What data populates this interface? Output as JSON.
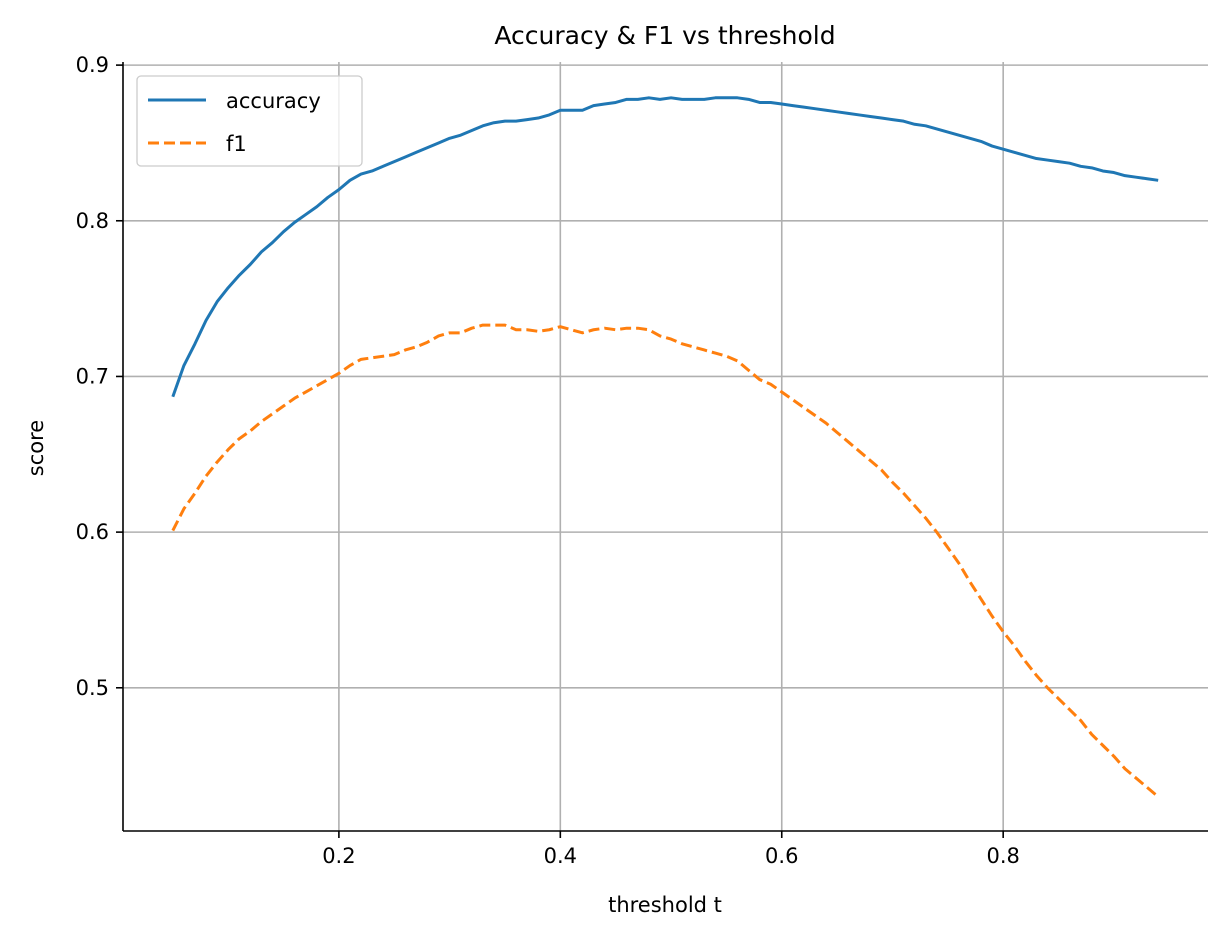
{
  "chart_data": {
    "type": "line",
    "title": "Accuracy & F1 vs threshold",
    "xlabel": "threshold t",
    "ylabel": "score",
    "xlim": [
      0.005,
      0.985
    ],
    "ylim": [
      0.408,
      0.902
    ],
    "xticks": [
      0.2,
      0.4,
      0.6,
      0.8
    ],
    "xtick_labels": [
      "0.2",
      "0.4",
      "0.6",
      "0.8"
    ],
    "yticks": [
      0.5,
      0.6,
      0.7,
      0.8,
      0.9
    ],
    "ytick_labels": [
      "0.5",
      "0.6",
      "0.7",
      "0.8",
      "0.9"
    ],
    "grid": true,
    "legend_position": "top-left",
    "x": [
      0.05,
      0.06,
      0.07,
      0.08,
      0.09,
      0.1,
      0.11,
      0.12,
      0.13,
      0.14,
      0.15,
      0.16,
      0.17,
      0.18,
      0.19,
      0.2,
      0.21,
      0.22,
      0.23,
      0.24,
      0.25,
      0.26,
      0.27,
      0.28,
      0.29,
      0.3,
      0.31,
      0.32,
      0.33,
      0.34,
      0.35,
      0.36,
      0.37,
      0.38,
      0.39,
      0.4,
      0.41,
      0.42,
      0.43,
      0.44,
      0.45,
      0.46,
      0.47,
      0.48,
      0.49,
      0.5,
      0.51,
      0.52,
      0.53,
      0.54,
      0.55,
      0.56,
      0.57,
      0.58,
      0.59,
      0.6,
      0.61,
      0.62,
      0.63,
      0.64,
      0.65,
      0.66,
      0.67,
      0.68,
      0.69,
      0.7,
      0.71,
      0.72,
      0.73,
      0.74,
      0.75,
      0.76,
      0.77,
      0.78,
      0.79,
      0.8,
      0.81,
      0.82,
      0.83,
      0.84,
      0.85,
      0.86,
      0.87,
      0.88,
      0.89,
      0.9,
      0.91,
      0.92,
      0.93,
      0.94
    ],
    "series": [
      {
        "name": "accuracy",
        "color": "#1f77b4",
        "dash": "solid",
        "values": [
          0.687,
          0.707,
          0.721,
          0.736,
          0.748,
          0.757,
          0.765,
          0.772,
          0.78,
          0.786,
          0.793,
          0.799,
          0.804,
          0.809,
          0.815,
          0.82,
          0.826,
          0.83,
          0.832,
          0.835,
          0.838,
          0.841,
          0.844,
          0.847,
          0.85,
          0.853,
          0.855,
          0.858,
          0.861,
          0.863,
          0.864,
          0.864,
          0.865,
          0.866,
          0.868,
          0.871,
          0.871,
          0.871,
          0.874,
          0.875,
          0.876,
          0.878,
          0.878,
          0.879,
          0.878,
          0.879,
          0.878,
          0.878,
          0.878,
          0.879,
          0.879,
          0.879,
          0.878,
          0.876,
          0.876,
          0.875,
          0.874,
          0.873,
          0.872,
          0.871,
          0.87,
          0.869,
          0.868,
          0.867,
          0.866,
          0.865,
          0.864,
          0.862,
          0.861,
          0.859,
          0.857,
          0.855,
          0.853,
          0.851,
          0.848,
          0.846,
          0.844,
          0.842,
          0.84,
          0.839,
          0.838,
          0.837,
          0.835,
          0.834,
          0.832,
          0.831,
          0.829,
          0.828,
          0.827,
          0.826
        ]
      },
      {
        "name": "f1",
        "color": "#ff7f0e",
        "dash": "dashed",
        "values": [
          0.601,
          0.615,
          0.625,
          0.636,
          0.645,
          0.653,
          0.66,
          0.665,
          0.671,
          0.676,
          0.681,
          0.686,
          0.69,
          0.694,
          0.698,
          0.702,
          0.707,
          0.711,
          0.712,
          0.713,
          0.714,
          0.717,
          0.719,
          0.722,
          0.726,
          0.728,
          0.728,
          0.731,
          0.733,
          0.733,
          0.733,
          0.73,
          0.73,
          0.729,
          0.73,
          0.732,
          0.73,
          0.728,
          0.73,
          0.731,
          0.73,
          0.731,
          0.731,
          0.73,
          0.726,
          0.724,
          0.721,
          0.719,
          0.717,
          0.715,
          0.713,
          0.71,
          0.704,
          0.698,
          0.695,
          0.69,
          0.685,
          0.68,
          0.675,
          0.67,
          0.664,
          0.658,
          0.652,
          0.646,
          0.64,
          0.632,
          0.625,
          0.617,
          0.609,
          0.6,
          0.59,
          0.58,
          0.568,
          0.557,
          0.546,
          0.536,
          0.527,
          0.517,
          0.508,
          0.5,
          0.493,
          0.486,
          0.479,
          0.47,
          0.463,
          0.456,
          0.448,
          0.442,
          0.436,
          0.43
        ]
      }
    ]
  }
}
